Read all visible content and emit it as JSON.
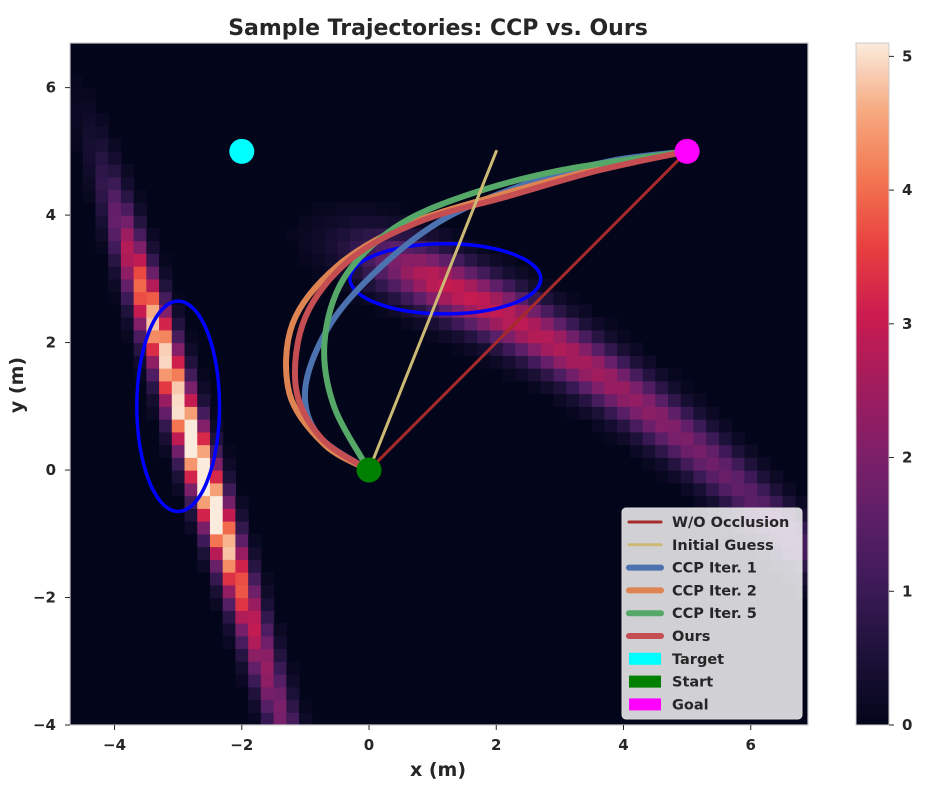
{
  "chart_data": {
    "type": "heatmap",
    "title": "Sample Trajectories: CCP vs. Ours",
    "xlabel": "x (m)",
    "ylabel": "y (m)",
    "xlim": [
      -4.7,
      6.9
    ],
    "ylim": [
      -4.0,
      6.7
    ],
    "xticks": [
      -4,
      -2,
      0,
      2,
      4,
      6
    ],
    "yticks": [
      -4,
      -2,
      0,
      2,
      4,
      6
    ],
    "xtick_labels": [
      "−4",
      "−2",
      "0",
      "2",
      "4",
      "6"
    ],
    "ytick_labels": [
      "−4",
      "−2",
      "0",
      "2",
      "4",
      "6"
    ],
    "grid": false,
    "heatmap": {
      "cell_size": 0.2,
      "zmin": 0,
      "zmax": 5.1,
      "colorscale": "rocket",
      "blobs": [
        {
          "name": "left-band",
          "x0": -2.95,
          "y0": 1.0,
          "dx": -0.2,
          "sigma_x": 0.18,
          "sigma_y": 1.6,
          "peak": 5.0
        },
        {
          "name": "right-band",
          "x0": 1.2,
          "y0": 2.9,
          "slope": -0.45,
          "sigma_perp": 0.35,
          "peak": 3.0
        }
      ]
    },
    "colorbar": {
      "ticks": [
        0,
        1,
        2,
        3,
        4,
        5
      ],
      "tick_labels": [
        "0",
        "1",
        "2",
        "3",
        "4",
        "5"
      ]
    },
    "ellipses": [
      {
        "cx": -3.0,
        "cy": 1.0,
        "rx": 0.65,
        "ry": 1.65,
        "color": "#0000ff"
      },
      {
        "cx": 1.2,
        "cy": 3.0,
        "rx": 1.5,
        "ry": 0.55,
        "color": "#0000ff"
      }
    ],
    "markers": [
      {
        "name": "Target",
        "x": -2.0,
        "y": 5.0,
        "color": "#00ffff"
      },
      {
        "name": "Start",
        "x": 0.0,
        "y": 0.0,
        "color": "#008000"
      },
      {
        "name": "Goal",
        "x": 5.0,
        "y": 5.0,
        "color": "#ff00ff"
      }
    ],
    "series": [
      {
        "name": "W/O Occlusion",
        "color": "#a72a2a",
        "width": 3,
        "points": [
          [
            0,
            0
          ],
          [
            5,
            5
          ]
        ]
      },
      {
        "name": "Initial Guess",
        "color": "#ccb974",
        "width": 3,
        "points": [
          [
            0,
            0
          ],
          [
            2,
            5
          ]
        ]
      },
      {
        "name": "CCP Iter. 1",
        "color": "#4c72b0",
        "width": 6,
        "points": [
          [
            0,
            0
          ],
          [
            -0.8,
            0.55
          ],
          [
            -1.0,
            1.3
          ],
          [
            -0.6,
            2.3
          ],
          [
            0.2,
            3.2
          ],
          [
            1.2,
            3.95
          ],
          [
            2.5,
            4.5
          ],
          [
            3.8,
            4.85
          ],
          [
            5,
            5
          ]
        ]
      },
      {
        "name": "CCP Iter. 2",
        "color": "#dd8452",
        "width": 6,
        "points": [
          [
            0,
            0
          ],
          [
            -0.7,
            0.4
          ],
          [
            -1.25,
            1.2
          ],
          [
            -1.2,
            2.3
          ],
          [
            -0.5,
            3.2
          ],
          [
            0.6,
            3.85
          ],
          [
            2.0,
            4.3
          ],
          [
            3.5,
            4.7
          ],
          [
            5,
            5
          ]
        ]
      },
      {
        "name": "CCP Iter. 5",
        "color": "#55a868",
        "width": 6,
        "points": [
          [
            0,
            0
          ],
          [
            -0.55,
            1.0
          ],
          [
            -0.7,
            2.0
          ],
          [
            -0.4,
            3.0
          ],
          [
            0.4,
            3.8
          ],
          [
            1.5,
            4.3
          ],
          [
            3.0,
            4.7
          ],
          [
            5,
            5
          ]
        ]
      },
      {
        "name": "Ours",
        "color": "#c44e52",
        "width": 6,
        "points": [
          [
            0,
            0
          ],
          [
            -0.75,
            0.5
          ],
          [
            -1.15,
            1.3
          ],
          [
            -1.0,
            2.4
          ],
          [
            -0.3,
            3.3
          ],
          [
            0.8,
            3.9
          ],
          [
            2.2,
            4.3
          ],
          [
            3.6,
            4.7
          ],
          [
            5,
            5
          ]
        ]
      }
    ],
    "legend": {
      "position": "lower-right",
      "entries": [
        {
          "label": "W/O Occlusion",
          "kind": "line",
          "color": "#a72a2a",
          "width": 3
        },
        {
          "label": "Initial Guess",
          "kind": "line",
          "color": "#ccb974",
          "width": 3
        },
        {
          "label": "CCP Iter. 1",
          "kind": "line",
          "color": "#4c72b0",
          "width": 6
        },
        {
          "label": "CCP Iter. 2",
          "kind": "line",
          "color": "#dd8452",
          "width": 6
        },
        {
          "label": "CCP Iter. 5",
          "kind": "line",
          "color": "#55a868",
          "width": 6
        },
        {
          "label": "Ours",
          "kind": "line",
          "color": "#c44e52",
          "width": 6
        },
        {
          "label": "Target",
          "kind": "patch",
          "color": "#00ffff"
        },
        {
          "label": "Start",
          "kind": "patch",
          "color": "#008000"
        },
        {
          "label": "Goal",
          "kind": "patch",
          "color": "#ff00ff"
        }
      ]
    }
  }
}
